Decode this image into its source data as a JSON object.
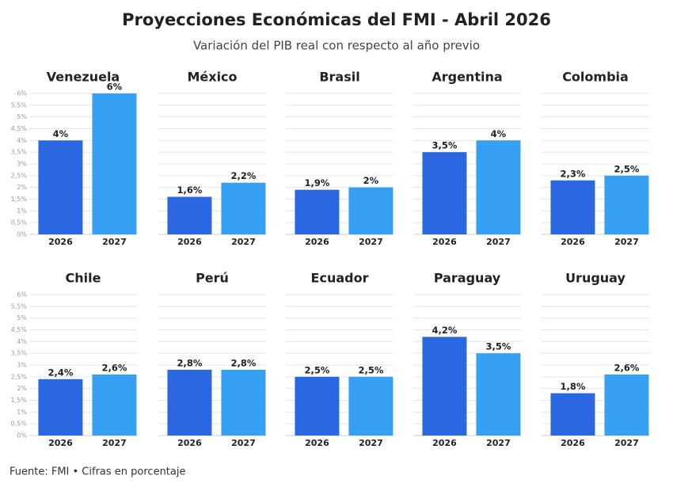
{
  "title": "Proyecciones Económicas del FMI - Abril 2026",
  "subtitle": "Variación del PIB real con respecto al año previo",
  "source": "Fuente: FMI • Cifras en porcentaje",
  "chart_data": [
    {
      "type": "bar",
      "title": "Venezuela",
      "categories": [
        "2026",
        "2027"
      ],
      "values": [
        4,
        6
      ],
      "value_labels": [
        "4%",
        "6%"
      ],
      "colors": [
        "#2a67e0",
        "#36a0f5"
      ],
      "ylim": [
        0,
        6
      ],
      "grid": true,
      "yticks": [
        {
          "value": 0,
          "label": "0%"
        },
        {
          "value": 0.5,
          "label": "0,5%"
        },
        {
          "value": 1,
          "label": "1%"
        },
        {
          "value": 1.5,
          "label": "1,5%"
        },
        {
          "value": 2,
          "label": "2%"
        },
        {
          "value": 2.5,
          "label": "2,5%"
        },
        {
          "value": 3,
          "label": "3%"
        },
        {
          "value": 3.5,
          "label": "3,5%"
        },
        {
          "value": 4,
          "label": "4%"
        },
        {
          "value": 4.5,
          "label": "4,5%"
        },
        {
          "value": 5,
          "label": "5%"
        },
        {
          "value": 5.5,
          "label": "5,5%"
        },
        {
          "value": 6,
          "label": "6%"
        }
      ]
    },
    {
      "type": "bar",
      "title": "México",
      "categories": [
        "2026",
        "2027"
      ],
      "values": [
        1.6,
        2.2
      ],
      "value_labels": [
        "1,6%",
        "2,2%"
      ],
      "colors": [
        "#2a67e0",
        "#36a0f5"
      ],
      "ylim": [
        0,
        6
      ],
      "grid": true,
      "yticks": [
        0,
        0.5,
        1,
        1.5,
        2,
        2.5,
        3,
        3.5,
        4,
        4.5,
        5,
        5.5,
        6
      ]
    },
    {
      "type": "bar",
      "title": "Brasil",
      "categories": [
        "2026",
        "2027"
      ],
      "values": [
        1.9,
        2
      ],
      "value_labels": [
        "1,9%",
        "2%"
      ],
      "colors": [
        "#2a67e0",
        "#36a0f5"
      ],
      "ylim": [
        0,
        6
      ],
      "grid": true,
      "yticks": [
        0,
        0.5,
        1,
        1.5,
        2,
        2.5,
        3,
        3.5,
        4,
        4.5,
        5,
        5.5,
        6
      ]
    },
    {
      "type": "bar",
      "title": "Argentina",
      "categories": [
        "2026",
        "2027"
      ],
      "values": [
        3.5,
        4
      ],
      "value_labels": [
        "3,5%",
        "4%"
      ],
      "colors": [
        "#2a67e0",
        "#36a0f5"
      ],
      "ylim": [
        0,
        6
      ],
      "grid": true,
      "yticks": [
        0,
        0.5,
        1,
        1.5,
        2,
        2.5,
        3,
        3.5,
        4,
        4.5,
        5,
        5.5,
        6
      ]
    },
    {
      "type": "bar",
      "title": "Colombia",
      "categories": [
        "2026",
        "2027"
      ],
      "values": [
        2.3,
        2.5
      ],
      "value_labels": [
        "2,3%",
        "2,5%"
      ],
      "colors": [
        "#2a67e0",
        "#36a0f5"
      ],
      "ylim": [
        0,
        6
      ],
      "grid": true,
      "yticks": [
        0,
        0.5,
        1,
        1.5,
        2,
        2.5,
        3,
        3.5,
        4,
        4.5,
        5,
        5.5,
        6
      ]
    },
    {
      "type": "bar",
      "title": "Chile",
      "categories": [
        "2026",
        "2027"
      ],
      "values": [
        2.4,
        2.6
      ],
      "value_labels": [
        "2,4%",
        "2,6%"
      ],
      "colors": [
        "#2a67e0",
        "#36a0f5"
      ],
      "ylim": [
        0,
        6
      ],
      "grid": true,
      "yticks": [
        {
          "value": 0,
          "label": "0%"
        },
        {
          "value": 0.5,
          "label": "0,5%"
        },
        {
          "value": 1,
          "label": "1%"
        },
        {
          "value": 1.5,
          "label": "1,5%"
        },
        {
          "value": 2,
          "label": "2%"
        },
        {
          "value": 2.5,
          "label": "2,5%"
        },
        {
          "value": 3,
          "label": "3%"
        },
        {
          "value": 3.5,
          "label": "3,5%"
        },
        {
          "value": 4,
          "label": "4%"
        },
        {
          "value": 4.5,
          "label": "4,5%"
        },
        {
          "value": 5,
          "label": "5%"
        },
        {
          "value": 5.5,
          "label": "5,5%"
        },
        {
          "value": 6,
          "label": "6%"
        }
      ]
    },
    {
      "type": "bar",
      "title": "Perú",
      "categories": [
        "2026",
        "2027"
      ],
      "values": [
        2.8,
        2.8
      ],
      "value_labels": [
        "2,8%",
        "2,8%"
      ],
      "colors": [
        "#2a67e0",
        "#36a0f5"
      ],
      "ylim": [
        0,
        6
      ],
      "grid": true,
      "yticks": [
        0,
        0.5,
        1,
        1.5,
        2,
        2.5,
        3,
        3.5,
        4,
        4.5,
        5,
        5.5,
        6
      ]
    },
    {
      "type": "bar",
      "title": "Ecuador",
      "categories": [
        "2026",
        "2027"
      ],
      "values": [
        2.5,
        2.5
      ],
      "value_labels": [
        "2,5%",
        "2,5%"
      ],
      "colors": [
        "#2a67e0",
        "#36a0f5"
      ],
      "ylim": [
        0,
        6
      ],
      "grid": true,
      "yticks": [
        0,
        0.5,
        1,
        1.5,
        2,
        2.5,
        3,
        3.5,
        4,
        4.5,
        5,
        5.5,
        6
      ]
    },
    {
      "type": "bar",
      "title": "Paraguay",
      "categories": [
        "2026",
        "2027"
      ],
      "values": [
        4.2,
        3.5
      ],
      "value_labels": [
        "4,2%",
        "3,5%"
      ],
      "colors": [
        "#2a67e0",
        "#36a0f5"
      ],
      "ylim": [
        0,
        6
      ],
      "grid": true,
      "yticks": [
        0,
        0.5,
        1,
        1.5,
        2,
        2.5,
        3,
        3.5,
        4,
        4.5,
        5,
        5.5,
        6
      ]
    },
    {
      "type": "bar",
      "title": "Uruguay",
      "categories": [
        "2026",
        "2027"
      ],
      "values": [
        1.8,
        2.6
      ],
      "value_labels": [
        "1,8%",
        "2,6%"
      ],
      "colors": [
        "#2a67e0",
        "#36a0f5"
      ],
      "ylim": [
        0,
        6
      ],
      "grid": true,
      "yticks": [
        0,
        0.5,
        1,
        1.5,
        2,
        2.5,
        3,
        3.5,
        4,
        4.5,
        5,
        5.5,
        6
      ]
    }
  ]
}
